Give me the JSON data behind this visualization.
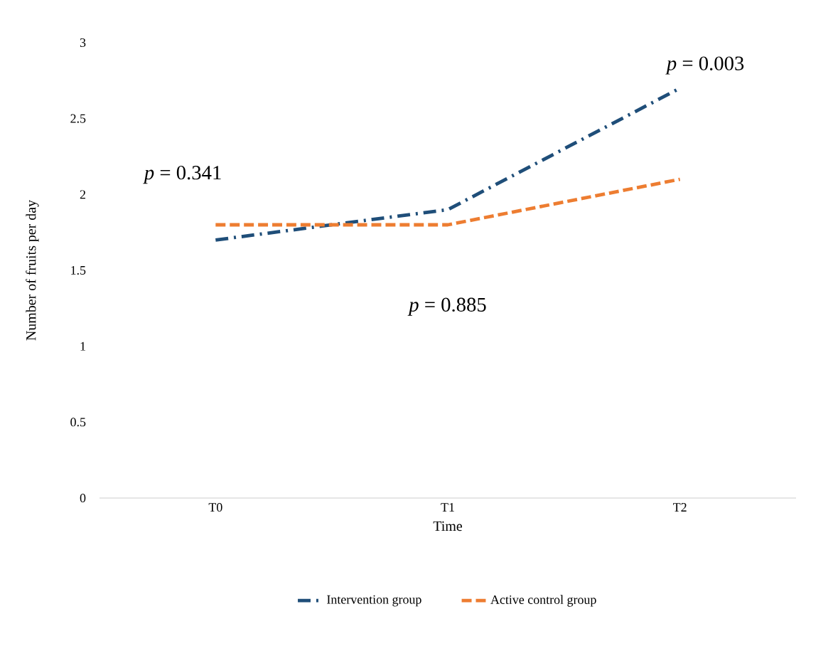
{
  "chart_data": {
    "type": "line",
    "xlabel": "Time",
    "ylabel": "Number of fruits per day",
    "categories": [
      "T0",
      "T1",
      "T2"
    ],
    "series": [
      {
        "name": "Intervention group",
        "color": "#1f4e79",
        "line_style": "dashdot",
        "values": [
          1.7,
          1.9,
          2.7
        ]
      },
      {
        "name": "Active control group",
        "color": "#ed7d31",
        "line_style": "dashed",
        "values": [
          1.8,
          1.8,
          2.1
        ]
      }
    ],
    "ylim": [
      0,
      3
    ],
    "yticks": [
      0,
      0.5,
      1,
      1.5,
      2,
      2.5,
      3
    ],
    "grid": false,
    "legend": "bottom",
    "marker": "none",
    "annotations": [
      "*p* = 0.341",
      "*p* = 0.885",
      "*p* = 0.003"
    ]
  }
}
